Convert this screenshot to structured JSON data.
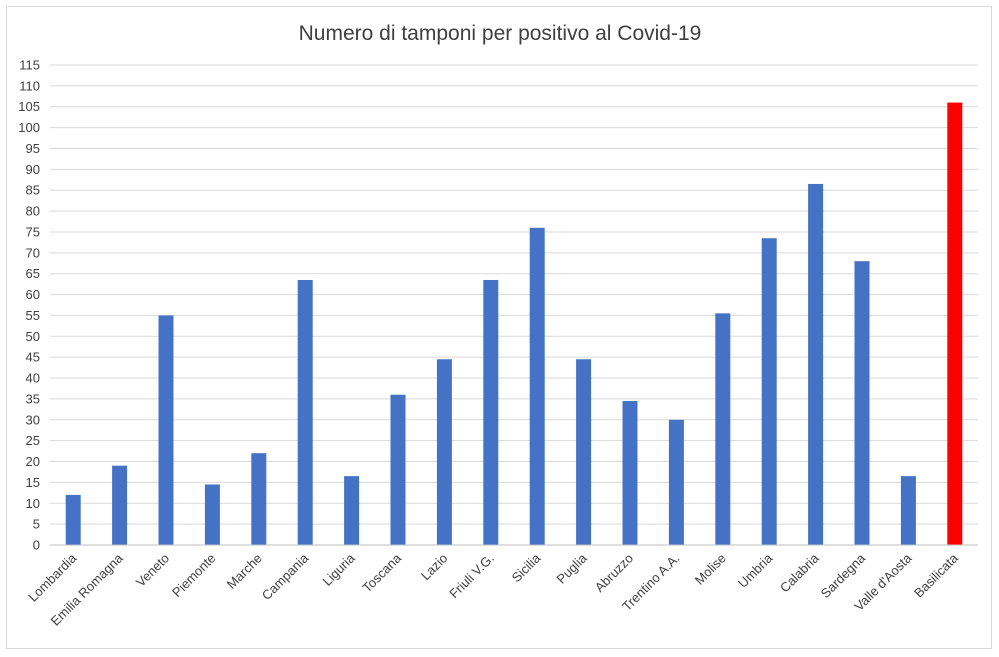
{
  "chart_data": {
    "type": "bar",
    "title": "Numero di tamponi per positivo al Covid-19",
    "xlabel": "",
    "ylabel": "",
    "ylim": [
      0,
      115
    ],
    "ytick_step": 5,
    "grid": true,
    "legend": "none",
    "categories": [
      "Lombardia",
      "Emilia Romagna",
      "Veneto",
      "Piemonte",
      "Marche",
      "Campania",
      "Liguria",
      "Toscana",
      "Lazio",
      "Friuli V.G.",
      "Sicilia",
      "Puglia",
      "Abruzzo",
      "Trentino A.A.",
      "Molise",
      "Umbria",
      "Calabria",
      "Sardegna",
      "Valle d'Aosta",
      "Basilicata"
    ],
    "values": [
      12,
      19,
      55,
      14.5,
      22,
      63.5,
      16.5,
      36,
      44.5,
      63.5,
      76,
      44.5,
      34.5,
      30,
      55.5,
      73.5,
      86.5,
      68,
      16.5,
      106
    ],
    "bar_color": "#4472c4",
    "highlight_color": "#ff0000",
    "highlight_category": "Basilicata"
  }
}
